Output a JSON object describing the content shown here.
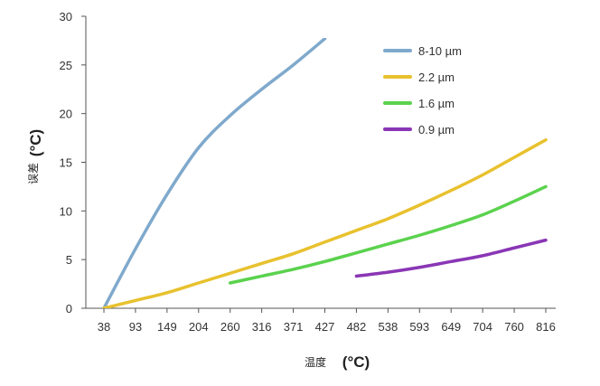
{
  "chart_data": {
    "type": "line",
    "title": "",
    "xlabel": {
      "text": "温度",
      "unit": "(°C)"
    },
    "ylabel": {
      "text": "误差",
      "unit": "(°C)"
    },
    "x_ticks": [
      "38",
      "93",
      "149",
      "204",
      "260",
      "316",
      "371",
      "427",
      "482",
      "538",
      "593",
      "649",
      "704",
      "760",
      "816"
    ],
    "y_ticks": [
      "0",
      "5",
      "10",
      "15",
      "20",
      "25",
      "30"
    ],
    "ylim": [
      0,
      30
    ],
    "grid": false,
    "legend_position": "top-right",
    "series": [
      {
        "name": "8-10 µm",
        "color": "#7fa9cc",
        "x": [
          38,
          93,
          149,
          204,
          260,
          316,
          371,
          427
        ],
        "y": [
          0,
          6.1,
          11.7,
          16.5,
          19.8,
          22.5,
          25.0,
          27.7
        ]
      },
      {
        "name": "2.2 µm",
        "color": "#e8c12e",
        "x": [
          38,
          93,
          149,
          204,
          260,
          316,
          371,
          427,
          482,
          538,
          593,
          649,
          704,
          760,
          816
        ],
        "y": [
          0,
          0.8,
          1.6,
          2.6,
          3.6,
          4.6,
          5.6,
          6.8,
          8.0,
          9.2,
          10.6,
          12.1,
          13.7,
          15.5,
          17.3
        ]
      },
      {
        "name": "1.6 µm",
        "color": "#5bd24e",
        "x": [
          260,
          316,
          371,
          427,
          482,
          538,
          593,
          649,
          704,
          760,
          816
        ],
        "y": [
          2.6,
          3.3,
          4.0,
          4.8,
          5.7,
          6.6,
          7.5,
          8.5,
          9.6,
          11.0,
          12.5
        ]
      },
      {
        "name": "0.9 µm",
        "color": "#8a36b5",
        "x": [
          482,
          538,
          593,
          649,
          704,
          760,
          816
        ],
        "y": [
          3.3,
          3.7,
          4.2,
          4.8,
          5.4,
          6.2,
          7.0
        ]
      }
    ]
  }
}
